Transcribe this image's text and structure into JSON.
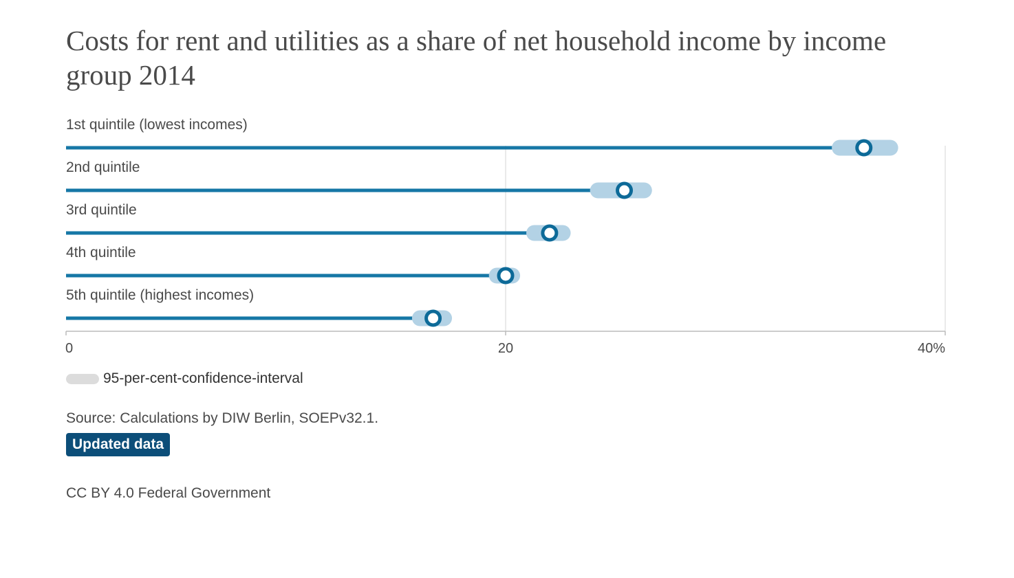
{
  "title": "Costs for rent and utilities as a share of net household income by income group 2014",
  "colors": {
    "bar": "#1677a6",
    "marker_stroke": "#0d6a98",
    "ci_band": "#b3d2e5",
    "grid": "#e4e4e4",
    "axis": "#bbbbbb",
    "legend_swatch": "#dcdcdc",
    "badge_bg": "#0c4e79"
  },
  "chart_data": {
    "type": "bar",
    "orientation": "horizontal",
    "categories": [
      "1st quintile (lowest incomes)",
      "2nd quintile",
      "3rd quintile",
      "4th quintile",
      "5th quintile (highest incomes)"
    ],
    "values": [
      36.3,
      25.4,
      22.0,
      20.0,
      16.7
    ],
    "ci_low": [
      35.2,
      24.2,
      21.3,
      19.6,
      16.1
    ],
    "ci_high": [
      37.5,
      26.3,
      22.6,
      20.3,
      17.2
    ],
    "x_ticks": [
      "0",
      "20",
      "40%"
    ],
    "x_tick_values": [
      0,
      20,
      40
    ],
    "xlim": [
      0,
      40
    ],
    "grid": true
  },
  "legend": {
    "label": "95-per-cent-confidence-interval"
  },
  "source": "Source: Calculations by DIW Berlin, SOEPv32.1.",
  "badge": "Updated data",
  "license": "CC BY 4.0 Federal Government"
}
